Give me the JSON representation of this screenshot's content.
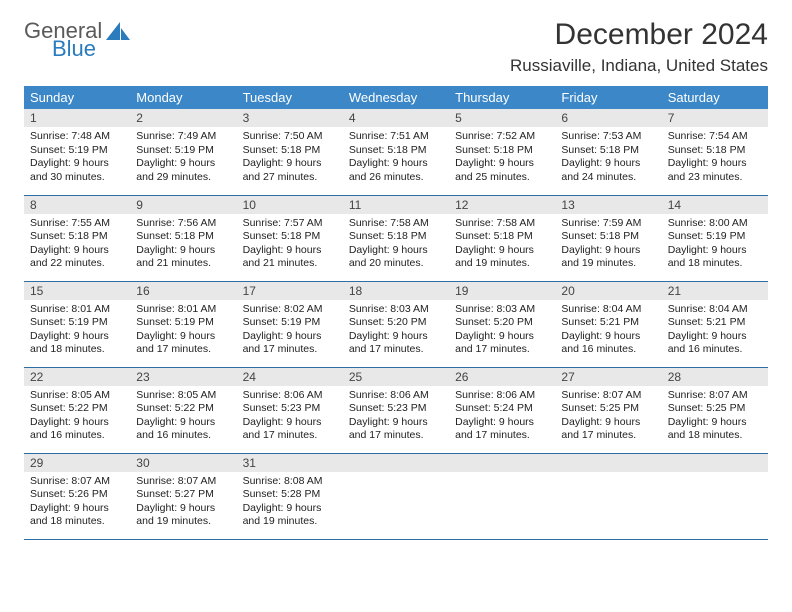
{
  "logo": {
    "text1": "General",
    "text2": "Blue"
  },
  "title": "December 2024",
  "location": "Russiaville, Indiana, United States",
  "colors": {
    "header_bg": "#3b87c8",
    "header_text": "#ffffff",
    "daynum_bg": "#e8e8e8",
    "row_border": "#2f6ea5",
    "logo_gray": "#5a5a5a",
    "logo_blue": "#2b7bbd"
  },
  "weekdays": [
    "Sunday",
    "Monday",
    "Tuesday",
    "Wednesday",
    "Thursday",
    "Friday",
    "Saturday"
  ],
  "weeks": [
    [
      {
        "n": "1",
        "sr": "Sunrise: 7:48 AM",
        "ss": "Sunset: 5:19 PM",
        "d1": "Daylight: 9 hours",
        "d2": "and 30 minutes."
      },
      {
        "n": "2",
        "sr": "Sunrise: 7:49 AM",
        "ss": "Sunset: 5:19 PM",
        "d1": "Daylight: 9 hours",
        "d2": "and 29 minutes."
      },
      {
        "n": "3",
        "sr": "Sunrise: 7:50 AM",
        "ss": "Sunset: 5:18 PM",
        "d1": "Daylight: 9 hours",
        "d2": "and 27 minutes."
      },
      {
        "n": "4",
        "sr": "Sunrise: 7:51 AM",
        "ss": "Sunset: 5:18 PM",
        "d1": "Daylight: 9 hours",
        "d2": "and 26 minutes."
      },
      {
        "n": "5",
        "sr": "Sunrise: 7:52 AM",
        "ss": "Sunset: 5:18 PM",
        "d1": "Daylight: 9 hours",
        "d2": "and 25 minutes."
      },
      {
        "n": "6",
        "sr": "Sunrise: 7:53 AM",
        "ss": "Sunset: 5:18 PM",
        "d1": "Daylight: 9 hours",
        "d2": "and 24 minutes."
      },
      {
        "n": "7",
        "sr": "Sunrise: 7:54 AM",
        "ss": "Sunset: 5:18 PM",
        "d1": "Daylight: 9 hours",
        "d2": "and 23 minutes."
      }
    ],
    [
      {
        "n": "8",
        "sr": "Sunrise: 7:55 AM",
        "ss": "Sunset: 5:18 PM",
        "d1": "Daylight: 9 hours",
        "d2": "and 22 minutes."
      },
      {
        "n": "9",
        "sr": "Sunrise: 7:56 AM",
        "ss": "Sunset: 5:18 PM",
        "d1": "Daylight: 9 hours",
        "d2": "and 21 minutes."
      },
      {
        "n": "10",
        "sr": "Sunrise: 7:57 AM",
        "ss": "Sunset: 5:18 PM",
        "d1": "Daylight: 9 hours",
        "d2": "and 21 minutes."
      },
      {
        "n": "11",
        "sr": "Sunrise: 7:58 AM",
        "ss": "Sunset: 5:18 PM",
        "d1": "Daylight: 9 hours",
        "d2": "and 20 minutes."
      },
      {
        "n": "12",
        "sr": "Sunrise: 7:58 AM",
        "ss": "Sunset: 5:18 PM",
        "d1": "Daylight: 9 hours",
        "d2": "and 19 minutes."
      },
      {
        "n": "13",
        "sr": "Sunrise: 7:59 AM",
        "ss": "Sunset: 5:18 PM",
        "d1": "Daylight: 9 hours",
        "d2": "and 19 minutes."
      },
      {
        "n": "14",
        "sr": "Sunrise: 8:00 AM",
        "ss": "Sunset: 5:19 PM",
        "d1": "Daylight: 9 hours",
        "d2": "and 18 minutes."
      }
    ],
    [
      {
        "n": "15",
        "sr": "Sunrise: 8:01 AM",
        "ss": "Sunset: 5:19 PM",
        "d1": "Daylight: 9 hours",
        "d2": "and 18 minutes."
      },
      {
        "n": "16",
        "sr": "Sunrise: 8:01 AM",
        "ss": "Sunset: 5:19 PM",
        "d1": "Daylight: 9 hours",
        "d2": "and 17 minutes."
      },
      {
        "n": "17",
        "sr": "Sunrise: 8:02 AM",
        "ss": "Sunset: 5:19 PM",
        "d1": "Daylight: 9 hours",
        "d2": "and 17 minutes."
      },
      {
        "n": "18",
        "sr": "Sunrise: 8:03 AM",
        "ss": "Sunset: 5:20 PM",
        "d1": "Daylight: 9 hours",
        "d2": "and 17 minutes."
      },
      {
        "n": "19",
        "sr": "Sunrise: 8:03 AM",
        "ss": "Sunset: 5:20 PM",
        "d1": "Daylight: 9 hours",
        "d2": "and 17 minutes."
      },
      {
        "n": "20",
        "sr": "Sunrise: 8:04 AM",
        "ss": "Sunset: 5:21 PM",
        "d1": "Daylight: 9 hours",
        "d2": "and 16 minutes."
      },
      {
        "n": "21",
        "sr": "Sunrise: 8:04 AM",
        "ss": "Sunset: 5:21 PM",
        "d1": "Daylight: 9 hours",
        "d2": "and 16 minutes."
      }
    ],
    [
      {
        "n": "22",
        "sr": "Sunrise: 8:05 AM",
        "ss": "Sunset: 5:22 PM",
        "d1": "Daylight: 9 hours",
        "d2": "and 16 minutes."
      },
      {
        "n": "23",
        "sr": "Sunrise: 8:05 AM",
        "ss": "Sunset: 5:22 PM",
        "d1": "Daylight: 9 hours",
        "d2": "and 16 minutes."
      },
      {
        "n": "24",
        "sr": "Sunrise: 8:06 AM",
        "ss": "Sunset: 5:23 PM",
        "d1": "Daylight: 9 hours",
        "d2": "and 17 minutes."
      },
      {
        "n": "25",
        "sr": "Sunrise: 8:06 AM",
        "ss": "Sunset: 5:23 PM",
        "d1": "Daylight: 9 hours",
        "d2": "and 17 minutes."
      },
      {
        "n": "26",
        "sr": "Sunrise: 8:06 AM",
        "ss": "Sunset: 5:24 PM",
        "d1": "Daylight: 9 hours",
        "d2": "and 17 minutes."
      },
      {
        "n": "27",
        "sr": "Sunrise: 8:07 AM",
        "ss": "Sunset: 5:25 PM",
        "d1": "Daylight: 9 hours",
        "d2": "and 17 minutes."
      },
      {
        "n": "28",
        "sr": "Sunrise: 8:07 AM",
        "ss": "Sunset: 5:25 PM",
        "d1": "Daylight: 9 hours",
        "d2": "and 18 minutes."
      }
    ],
    [
      {
        "n": "29",
        "sr": "Sunrise: 8:07 AM",
        "ss": "Sunset: 5:26 PM",
        "d1": "Daylight: 9 hours",
        "d2": "and 18 minutes."
      },
      {
        "n": "30",
        "sr": "Sunrise: 8:07 AM",
        "ss": "Sunset: 5:27 PM",
        "d1": "Daylight: 9 hours",
        "d2": "and 19 minutes."
      },
      {
        "n": "31",
        "sr": "Sunrise: 8:08 AM",
        "ss": "Sunset: 5:28 PM",
        "d1": "Daylight: 9 hours",
        "d2": "and 19 minutes."
      },
      {
        "empty": true
      },
      {
        "empty": true
      },
      {
        "empty": true
      },
      {
        "empty": true
      }
    ]
  ]
}
